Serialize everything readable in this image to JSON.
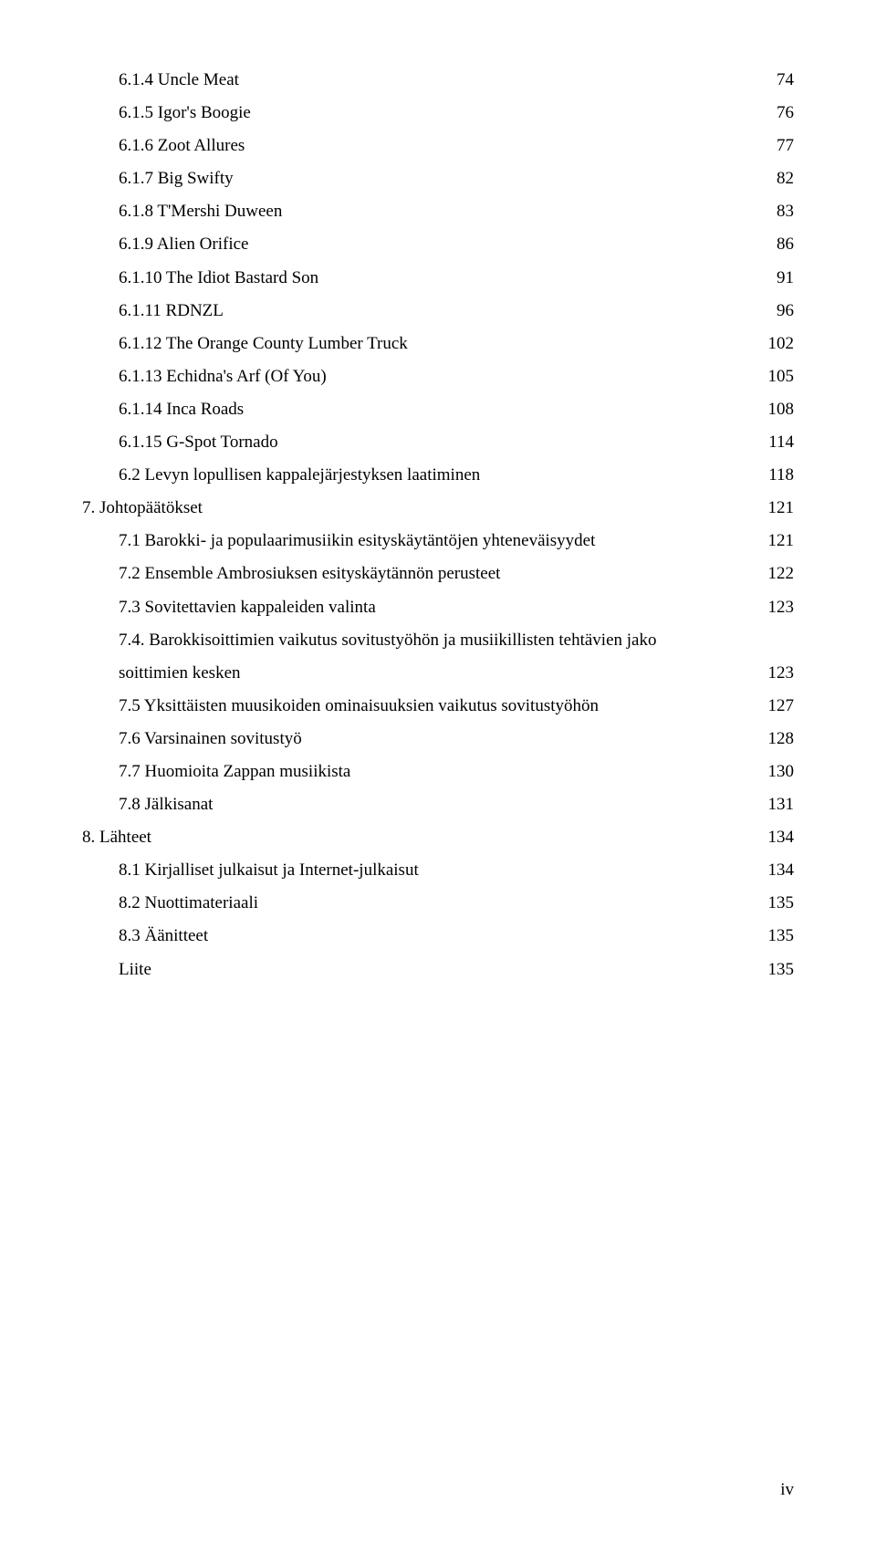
{
  "toc": [
    {
      "indent": 1,
      "label": "6.1.4 Uncle Meat",
      "page": "74"
    },
    {
      "indent": 1,
      "label": "6.1.5 Igor's Boogie",
      "page": "76"
    },
    {
      "indent": 1,
      "label": "6.1.6 Zoot Allures",
      "page": "77"
    },
    {
      "indent": 1,
      "label": "6.1.7 Big Swifty",
      "page": "82"
    },
    {
      "indent": 1,
      "label": "6.1.8 T'Mershi Duween",
      "page": "83"
    },
    {
      "indent": 1,
      "label": "6.1.9 Alien Orifice",
      "page": "86"
    },
    {
      "indent": 1,
      "label": "6.1.10 The Idiot Bastard Son",
      "page": "91"
    },
    {
      "indent": 1,
      "label": "6.1.11 RDNZL",
      "page": "96"
    },
    {
      "indent": 1,
      "label": "6.1.12 The Orange County Lumber Truck",
      "page": "102"
    },
    {
      "indent": 1,
      "label": "6.1.13 Echidna's Arf (Of You)",
      "page": "105"
    },
    {
      "indent": 1,
      "label": "6.1.14 Inca Roads",
      "page": "108"
    },
    {
      "indent": 1,
      "label": "6.1.15 G-Spot Tornado",
      "page": "114"
    },
    {
      "indent": 1,
      "label": "6.2 Levyn lopullisen kappalejärjestyksen laatiminen",
      "page": "118"
    },
    {
      "indent": 0,
      "label": "7. Johtopäätökset",
      "page": "121"
    },
    {
      "indent": 1,
      "label": "7.1 Barokki- ja populaarimusiikin esityskäytäntöjen yhteneväisyydet",
      "page": "121"
    },
    {
      "indent": 1,
      "label": "7.2 Ensemble Ambrosiuksen esityskäytännön perusteet",
      "page": "122"
    },
    {
      "indent": 1,
      "label": "7.3 Sovitettavien kappaleiden valinta",
      "page": "123"
    },
    {
      "indent": 1,
      "wrap": true,
      "label1": "7.4. Barokkisoittimien vaikutus sovitustyöhön ja musiikillisten tehtävien jako",
      "label2": "soittimien kesken",
      "page": "123"
    },
    {
      "indent": 1,
      "label": "7.5 Yksittäisten muusikoiden ominaisuuksien vaikutus sovitustyöhön",
      "page": "127"
    },
    {
      "indent": 1,
      "label": "7.6 Varsinainen sovitustyö",
      "page": "128"
    },
    {
      "indent": 1,
      "label": "7.7 Huomioita Zappan musiikista",
      "page": "130"
    },
    {
      "indent": 1,
      "label": "7.8 Jälkisanat",
      "page": "131"
    },
    {
      "indent": 0,
      "label": "8. Lähteet",
      "page": "134"
    },
    {
      "indent": 1,
      "label": "8.1 Kirjalliset julkaisut ja Internet-julkaisut",
      "page": "134"
    },
    {
      "indent": 1,
      "label": "8.2 Nuottimateriaali",
      "page": "135"
    },
    {
      "indent": 1,
      "label": "8.3 Äänitteet",
      "page": "135"
    },
    {
      "indent": 1,
      "label": "Liite",
      "page": "135"
    }
  ],
  "footer_page": "iv",
  "style": {
    "font_family": "Times New Roman",
    "font_size_pt": 12,
    "text_color": "#000000",
    "background": "#ffffff"
  }
}
